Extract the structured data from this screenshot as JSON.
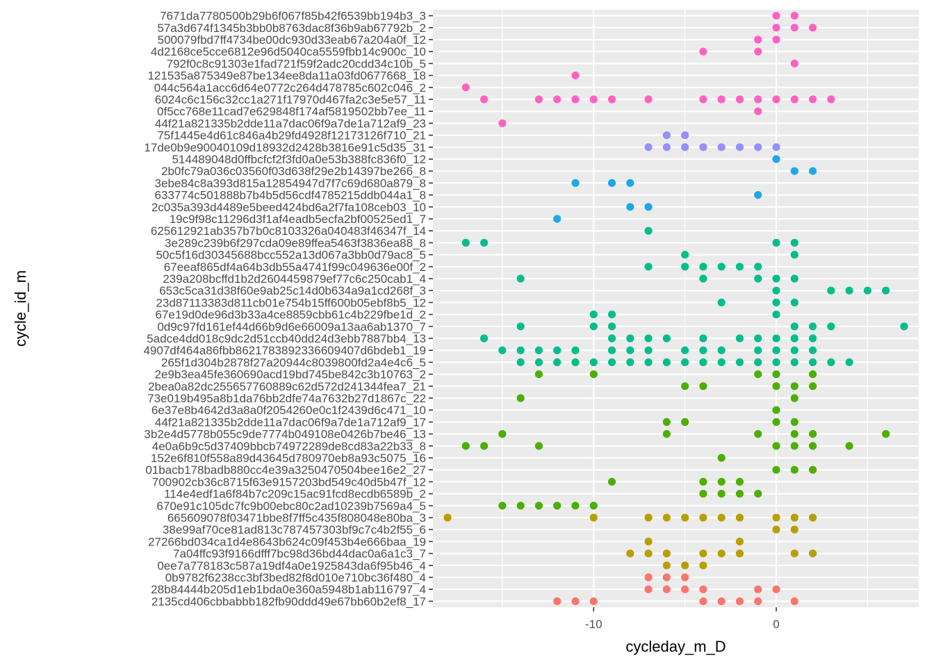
{
  "chart_data": {
    "type": "scatter",
    "title": "",
    "xlabel": "cycleday_m_D",
    "ylabel": "cycle_id_m",
    "xlim": [
      -18.8,
      7.8
    ],
    "x_ticks": [
      -10,
      0
    ],
    "x_tick_labels": [
      "-10",
      "0"
    ],
    "grid": true,
    "legend": "none",
    "background": "#ebebeb",
    "gridline_color": "#ffffff",
    "categories": [
      "7671da7780500b29b6f067f85b42f6539bb194b3_3",
      "57a3d674f1345b3bb0b8763dac8f36b9ab67792b_2",
      "500079fbd7ff4734be00dc930d33eab67a204a0f_12",
      "4d2168ce5cce6812e96d5040ca5559fbb14c900c_10",
      "792f0c8c91303e1fad721f59f2adc20cdd34c10b_5",
      "121535a875349e87be134ee8da11a03fd0677668_18",
      "044c564a1acc6d64e0772c264d478785c602c046_2",
      "6024c6c156c32cc1a271f17970d467fa2c3e5e57_11",
      "0f5cc768e11cad7e629848f174af5819502bb7ee_11",
      "44f21a821335b2dde11a7dac06f9a7de1a712af9_23",
      "75f1445e4d61c846a4b29fd4928f12173126f710_21",
      "17de0b9e90040109d18932d2428b3816e91c5d35_31",
      "514489048d0ffbcfcf2f3fd0a0e53b388fc836f0_12",
      "2b0fc79a036c03560f03d638f29e2b14397be266_8",
      "3ebe84c8a393d815a12854947d7f7c69d680a879_8",
      "633774c501888b7b4b5d56cdf4785215ddb044a1_8",
      "2c035a393d4489e5beed424bd6a2f7fa108ceb03_10",
      "19c9f98c11296d3f1af4eadb5ecfa2bf00525ed1_7",
      "625612921ab357b7b0c8103326a040483f46347f_14",
      "3e289c239b6f297cda09e89ffea5463f3836ea88_8",
      "50c5f16d30345688bcc552a13d067a3bb0d79ac8_5",
      "67eeaf865df4a64b3db55a4741f99c049636e00f_2",
      "239a208bcffd1b2d2604459879ef77c6c250cab1_4",
      "653c5ca31d38f60e9ab25c14d0b634a9a1cd268f_3",
      "23d87113383d811cb01e754b15ff600b05ebf8b5_12",
      "67e19d0de96d3b33a4ce8859cbb61c4b229fbe1d_2",
      "0d9c97fd161ef44d66b9d6e66009a13aa6ab1370_7",
      "5adce4dd018c9dc2d51ccb40dd24d3ebb7887bb4_13",
      "4907df464a86fbb8621783892336609407d6bdeb1_19",
      "265f1d304b2878f27a20944c8039800fd2a4e4c6_5",
      "2e9b3ea45fe360690acd19bd745be842c3b10763_2",
      "2bea0a82dc255657760889c62d572d241344fea7_21",
      "73e019b495a8b1da76bb2dfe74a7632b27d1867c_22",
      "6e37e8b4642d3a8a0f2054260e0c1f2439d6c471_10",
      "44f21a821335b2dde11a7dac06f9a7de1a712af9_17",
      "3b2e4d5778b055c9de7774b049108e0426b7be46_13",
      "4e0a6b9c5d37409bbcb74972289de8cd83a22b33_8",
      "152e6f810f558a89d43645d780970eb8a93c5075_16",
      "01bacb178badb880cc4e39a3250470504bee16e2_27",
      "700902cb36c8715f63e9157203bd549c40d5b47f_12",
      "114e4edf1a6f84b7c209c15ac91fcd8ecdb6589b_2",
      "670e91c105dc7fc9b00ebc80c2ad10239b7569a4_5",
      "665609078f03471bbe8f7ff5c435f808048e80ba_3",
      "38e99af70ce81ad813c787457303bf9c7c4b2f55_6",
      "27266bd034ca1d4e8643b624c09f453b4e666baa_19",
      "7a04ffc93f9166dfff7bc98d36bd44dac0a6a1c3_7",
      "0ee7a778183c587a19df4a0e1925843da6f95b46_4",
      "0b9782f6238cc3bf3bed82f8d010e710bc36f480_4",
      "28b84444b205d1eb1bda0e360a5948b1ab116797_4",
      "2135cd406cbbabbb182fb90ddd49e67bb60b2ef8_17"
    ],
    "series": [
      {
        "cycle": "7671da7780500b29b6f067f85b42f6539bb194b3_3",
        "color": "#FF61C3",
        "x": [
          0,
          1
        ]
      },
      {
        "cycle": "57a3d674f1345b3bb0b8763dac8f36b9ab67792b_2",
        "color": "#FF61C3",
        "x": [
          0,
          1,
          2
        ]
      },
      {
        "cycle": "500079fbd7ff4734be00dc930d33eab67a204a0f_12",
        "color": "#FF61C3",
        "x": [
          -1,
          0
        ]
      },
      {
        "cycle": "4d2168ce5cce6812e96d5040ca5559fbb14c900c_10",
        "color": "#FF61C3",
        "x": [
          -4,
          -1
        ]
      },
      {
        "cycle": "792f0c8c91303e1fad721f59f2adc20cdd34c10b_5",
        "color": "#FF61C3",
        "x": [
          1
        ]
      },
      {
        "cycle": "121535a875349e87be134ee8da11a03fd0677668_18",
        "color": "#FF61C3",
        "x": [
          -11
        ]
      },
      {
        "cycle": "044c564a1acc6d64e0772c264d478785c602c046_2",
        "color": "#FF61C3",
        "x": [
          -17
        ]
      },
      {
        "cycle": "6024c6c156c32cc1a271f17970d467fa2c3e5e57_11",
        "color": "#FF61C3",
        "x": [
          -16,
          -13,
          -12,
          -11,
          -10,
          -9,
          -7,
          -4,
          -3,
          -2,
          -1,
          0,
          1,
          2,
          3
        ]
      },
      {
        "cycle": "0f5cc768e11cad7e629848f174af5819502bb7ee_11",
        "color": "#FF61C3",
        "x": [
          -1
        ]
      },
      {
        "cycle": "44f21a821335b2dde11a7dac06f9a7de1a712af9_23",
        "color": "#FF61C3",
        "x": [
          -15
        ]
      },
      {
        "cycle": "75f1445e4d61c846a4b29fd4928f12173126f710_21",
        "color": "#9590FF",
        "x": [
          -6,
          -5
        ]
      },
      {
        "cycle": "17de0b9e90040109d18932d2428b3816e91c5d35_31",
        "color": "#9590FF",
        "x": [
          -7,
          -6,
          -5,
          -4,
          -3,
          -2,
          -1,
          0
        ]
      },
      {
        "cycle": "514489048d0ffbcfcf2f3fd0a0e53b388fc836f0_12",
        "color": "#1CA9E9",
        "x": [
          0
        ]
      },
      {
        "cycle": "2b0fc79a036c03560f03d638f29e2b14397be266_8",
        "color": "#1CA9E9",
        "x": [
          1,
          2
        ]
      },
      {
        "cycle": "3ebe84c8a393d815a12854947d7f7c69d680a879_8",
        "color": "#1CA9E9",
        "x": [
          -11,
          -9,
          -8
        ]
      },
      {
        "cycle": "633774c501888b7b4b5d56cdf4785215ddb044a1_8",
        "color": "#1CA9E9",
        "x": [
          -1
        ]
      },
      {
        "cycle": "2c035a393d4489e5beed424bd6a2f7fa108ceb03_10",
        "color": "#1CA9E9",
        "x": [
          -8,
          -7
        ]
      },
      {
        "cycle": "19c9f98c11296d3f1af4eadb5ecfa2bf00525ed1_7",
        "color": "#1CA9E9",
        "x": [
          -12
        ]
      },
      {
        "cycle": "625612921ab357b7b0c8103326a040483f46347f_14",
        "color": "#00BE8B",
        "x": [
          -7
        ]
      },
      {
        "cycle": "3e289c239b6f297cda09e89ffea5463f3836ea88_8",
        "color": "#00BE8B",
        "x": [
          -17,
          -16,
          0,
          1
        ]
      },
      {
        "cycle": "50c5f16d30345688bcc552a13d067a3bb0d79ac8_5",
        "color": "#00BE8B",
        "x": [
          -5,
          1
        ]
      },
      {
        "cycle": "67eeaf865df4a64b3db55a4741f99c049636e00f_2",
        "color": "#00BE8B",
        "x": [
          -7,
          -5,
          -4,
          -3,
          -2,
          -1
        ]
      },
      {
        "cycle": "239a208bcffd1b2d2604459879ef77c6c250cab1_4",
        "color": "#00BE8B",
        "x": [
          -14,
          -4,
          -1,
          0,
          1
        ]
      },
      {
        "cycle": "653c5ca31d38f60e9ab25c14d0b634a9a1cd268f_3",
        "color": "#00BE8B",
        "x": [
          0,
          3,
          4,
          5,
          6
        ]
      },
      {
        "cycle": "23d87113383d811cb01e754b15ff600b05ebf8b5_12",
        "color": "#00BE8B",
        "x": [
          -3,
          0,
          1
        ]
      },
      {
        "cycle": "67e19d0de96d3b33a4ce8859cbb61c4b229fbe1d_2",
        "color": "#00BE8B",
        "x": [
          -10,
          -9,
          0
        ]
      },
      {
        "cycle": "0d9c97fd161ef44d66b9d6e66009a13aa6ab1370_7",
        "color": "#00BE8B",
        "x": [
          -14,
          -10,
          -9,
          1,
          2,
          3,
          7
        ]
      },
      {
        "cycle": "5adce4dd018c9dc2d51ccb40dd24d3ebb7887bb4_13",
        "color": "#00BE8B",
        "x": [
          -16,
          -9,
          -8,
          -7,
          -6,
          -4,
          -2,
          -1,
          0,
          1,
          2
        ]
      },
      {
        "cycle": "4907df464a86fbb8621783892336609407d6bdeb1_19",
        "color": "#00BE8B",
        "x": [
          -15,
          -14,
          -13,
          -12,
          -11,
          -9,
          -8,
          -7,
          -5,
          -4,
          -3,
          -1,
          0,
          1,
          2
        ]
      },
      {
        "cycle": "265f1d304b2878f27a20944c8039800fd2a4e4c6_5",
        "color": "#00BE8B",
        "x": [
          -14,
          -13,
          -12,
          -11,
          -10,
          -9,
          -8,
          -7,
          -6,
          -5,
          -4,
          -3,
          -2,
          -1,
          0,
          1,
          2,
          3,
          4
        ]
      },
      {
        "cycle": "2e9b3ea45fe360690acd19bd745be842c3b10763_2",
        "color": "#4DAF00",
        "x": [
          -13,
          -10,
          -1,
          0,
          2
        ]
      },
      {
        "cycle": "2bea0a82dc255657760889c62d572d241344fea7_21",
        "color": "#4DAF00",
        "x": [
          -5,
          -4,
          0,
          1,
          2
        ]
      },
      {
        "cycle": "73e019b495a8b1da76bb2dfe74a7632b27d1867c_22",
        "color": "#4DAF00",
        "x": [
          -14,
          1
        ]
      },
      {
        "cycle": "6e37e8b4642d3a8a0f2054260e0c1f2439d6c471_10",
        "color": "#4DAF00",
        "x": [
          0
        ]
      },
      {
        "cycle": "44f21a821335b2dde11a7dac06f9a7de1a712af9_17",
        "color": "#4DAF00",
        "x": [
          -6,
          -5,
          0,
          1
        ]
      },
      {
        "cycle": "3b2e4d5778b055c9de7774b049108e0426b7be46_13",
        "color": "#4DAF00",
        "x": [
          -15,
          -6,
          -1,
          1,
          2,
          6
        ]
      },
      {
        "cycle": "4e0a6b9c5d37409bbcb74972289de8cd83a22b33_8",
        "color": "#4DAF00",
        "x": [
          -17,
          -16,
          -13,
          0,
          1,
          2,
          4
        ]
      },
      {
        "cycle": "152e6f810f558a89d43645d780970eb8a93c5075_16",
        "color": "#4DAF00",
        "x": [
          -3
        ]
      },
      {
        "cycle": "01bacb178badb880cc4e39a3250470504bee16e2_27",
        "color": "#4DAF00",
        "x": [
          0,
          1,
          2
        ]
      },
      {
        "cycle": "700902cb36c8715f63e9157203bd549c40d5b47f_12",
        "color": "#4DAF00",
        "x": [
          -9,
          -4,
          -3,
          -2
        ]
      },
      {
        "cycle": "114e4edf1a6f84b7c209c15ac91fcd8ecdb6589b_2",
        "color": "#4DAF00",
        "x": [
          -4,
          -3,
          -2,
          -1
        ]
      },
      {
        "cycle": "670e91c105dc7fc9b00ebc80c2ad10239b7569a4_5",
        "color": "#4DAF00",
        "x": [
          -15,
          -14,
          -13,
          -12,
          -11,
          -10
        ]
      },
      {
        "cycle": "665609078f03471bbe8f7ff5c435f808048e80ba_3",
        "color": "#B79F00",
        "x": [
          -18,
          -10,
          -7,
          -6,
          -5,
          -4,
          -3,
          -2,
          0,
          1,
          2
        ]
      },
      {
        "cycle": "38e99af70ce81ad813c787457303bf9c7c4b2f55_6",
        "color": "#B79F00",
        "x": [
          0,
          1
        ]
      },
      {
        "cycle": "27266bd034ca1d4e8643b624c09f453b4e666baa_19",
        "color": "#B79F00",
        "x": [
          -7,
          -2
        ]
      },
      {
        "cycle": "7a04ffc93f9166dfff7bc98d36bd44dac0a6a1c3_7",
        "color": "#B79F00",
        "x": [
          -8,
          -7,
          -6,
          -4,
          -3,
          -2,
          1,
          2
        ]
      },
      {
        "cycle": "0ee7a778183c587a19df4a0e1925843da6f95b46_4",
        "color": "#B79F00",
        "x": [
          -6,
          -5,
          -4
        ]
      },
      {
        "cycle": "0b9782f6238cc3bf3bed82f8d010e710bc36f480_4",
        "color": "#F8766D",
        "x": [
          -7,
          -6,
          -5
        ]
      },
      {
        "cycle": "28b84444b205d1eb1bda0e360a5948b1ab116797_4",
        "color": "#F8766D",
        "x": [
          -7,
          -6,
          -5,
          -4,
          -1,
          0
        ]
      },
      {
        "cycle": "2135cd406cbbabbb182fb90ddd49e67bb60b2ef8_17",
        "color": "#F8766D",
        "x": [
          -12,
          -11,
          -10,
          -4,
          -3,
          -2,
          -1,
          1
        ]
      }
    ]
  }
}
